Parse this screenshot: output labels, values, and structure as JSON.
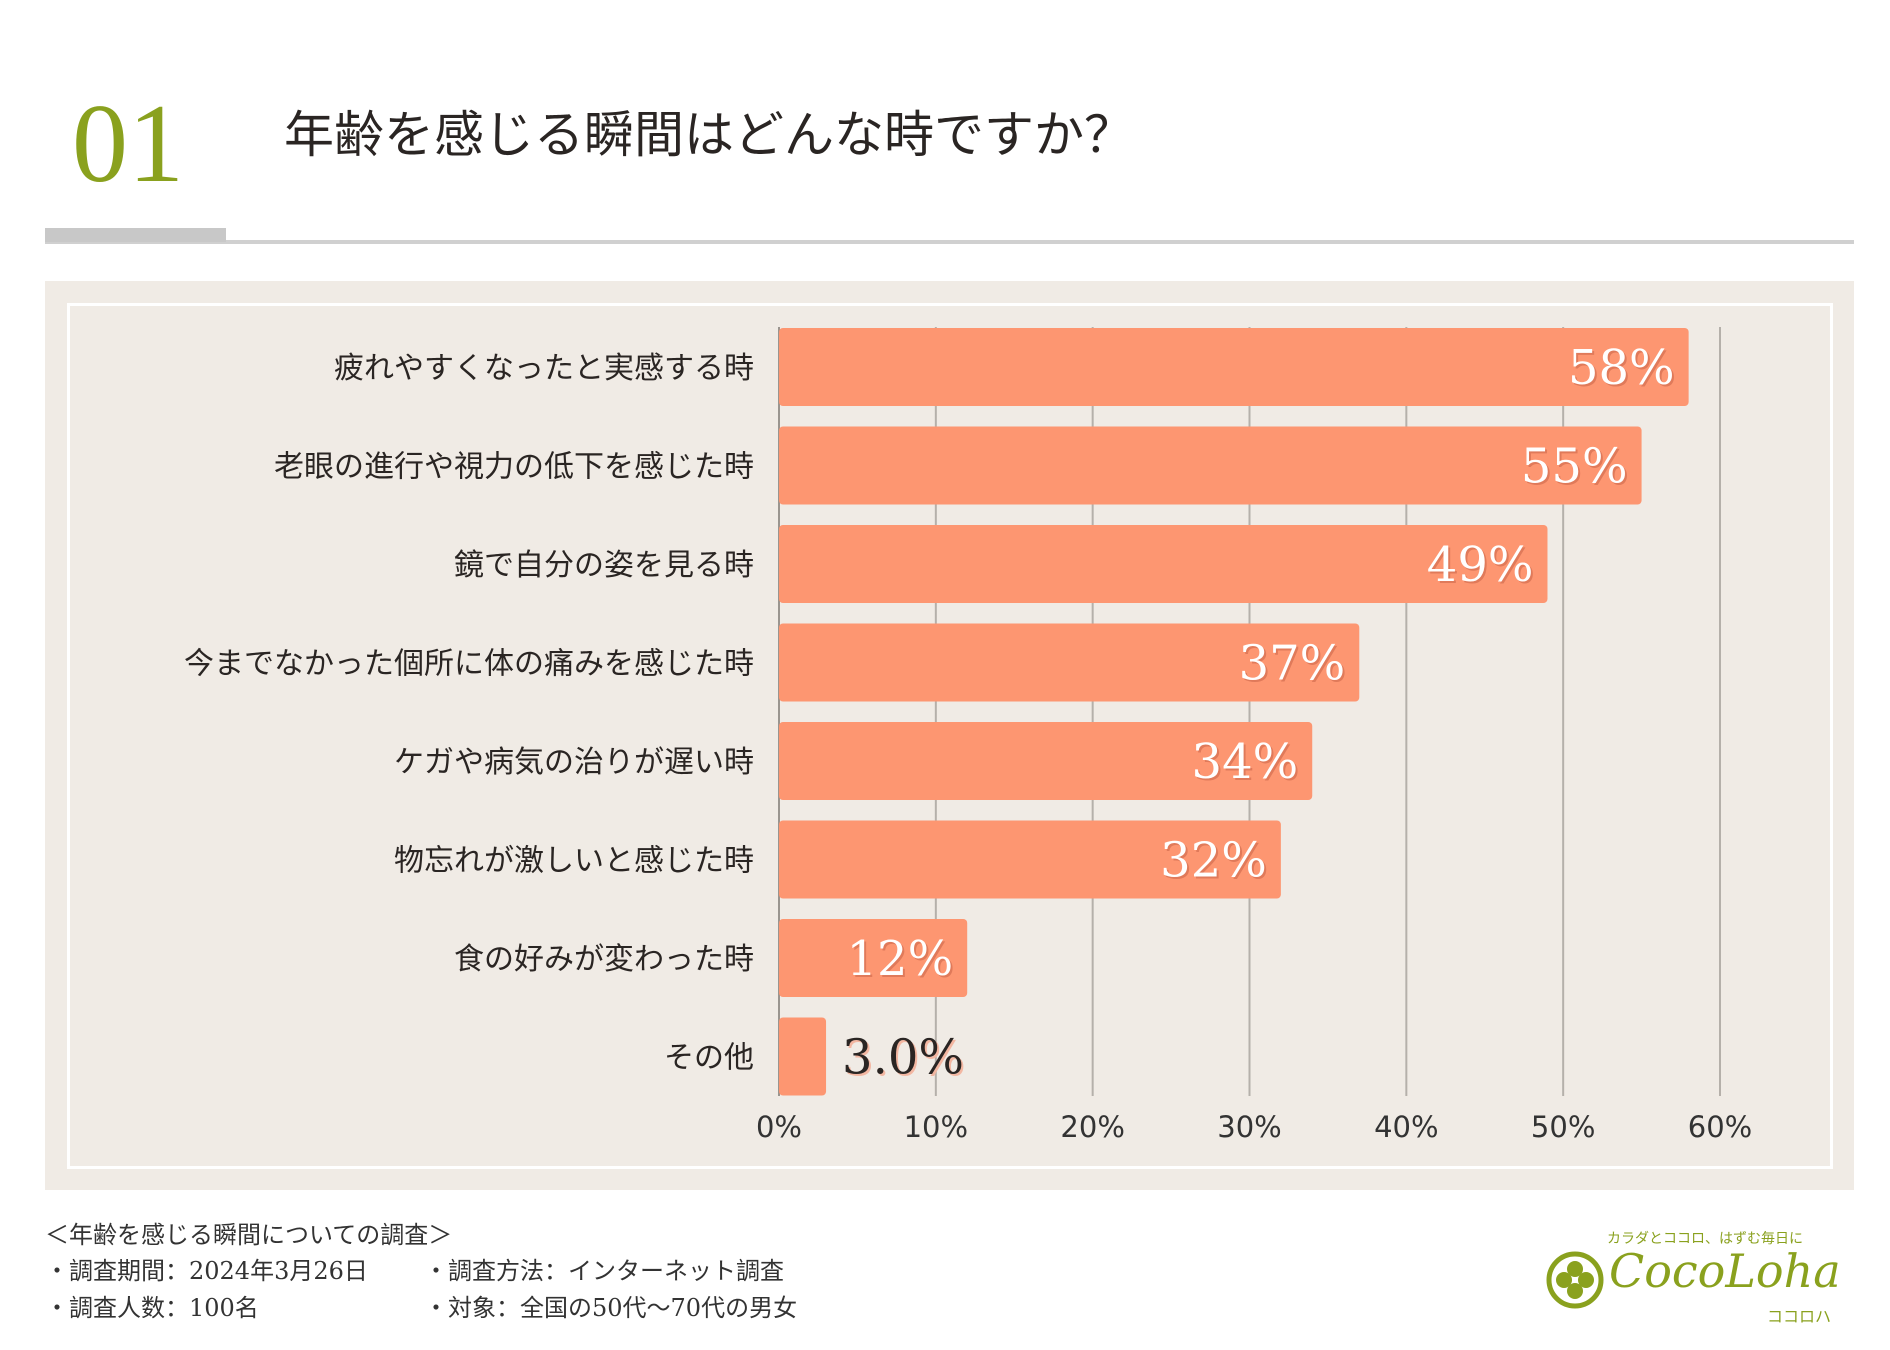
{
  "header": {
    "number": "01",
    "title": "年齢を感じる瞬間はどんな時ですか？"
  },
  "chart_data": {
    "type": "bar",
    "orientation": "horizontal",
    "categories": [
      "疲れやすくなったと実感する時",
      "老眼の進行や視力の低下を感じた時",
      "鏡で自分の姿を見る時",
      "今までなかった個所に体の痛みを感じた時",
      "ケガや病気の治りが遅い時",
      "物忘れが激しいと感じた時",
      "食の好みが変わった時",
      "その他"
    ],
    "values": [
      58,
      55,
      49,
      37,
      34,
      32,
      12,
      3.0
    ],
    "value_labels": [
      "58%",
      "55%",
      "49%",
      "37%",
      "34%",
      "32%",
      "12%",
      "3.0%"
    ],
    "xlim": [
      0,
      60
    ],
    "xticks": [
      0,
      10,
      20,
      30,
      40,
      50,
      60
    ],
    "xtick_labels": [
      "0%",
      "10%",
      "20%",
      "30%",
      "40%",
      "50%",
      "60%"
    ],
    "grid": true,
    "bar_color": "#fd9671",
    "background": "#f0ebe5"
  },
  "footer": {
    "survey_title": "＜年齢を感じる瞬間についての調査＞",
    "period": "・調査期間：2024年3月26日",
    "method": "・調査方法：インターネット調査",
    "count": "・調査人数：100名",
    "target": "・対象：全国の50代～70代の男女"
  },
  "logo": {
    "tagline": "カラダとココロ、はずむ毎日に",
    "name": "CocoLoha",
    "kana": "ココロハ",
    "color": "#8aa11e"
  }
}
